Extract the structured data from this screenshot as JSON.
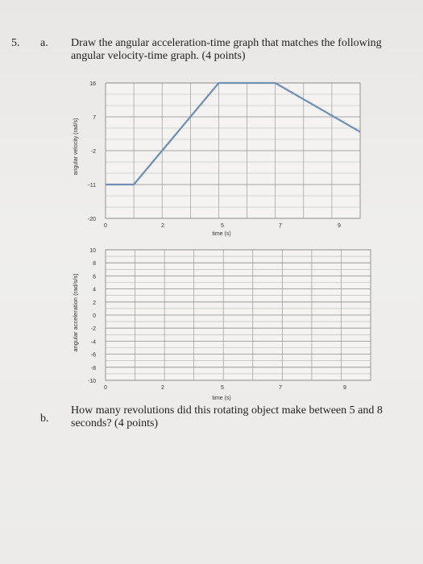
{
  "question": {
    "number": "5.",
    "part_a_label": "a.",
    "part_a_text": "Draw the angular acceleration-time graph that matches the following angular velocity-time graph. (4 points)",
    "part_b_label": "b.",
    "part_b_text": "How many revolutions did this rotating object make between 5 and 8 seconds? (4 points)"
  },
  "chart_data": [
    {
      "type": "line",
      "xlabel": "time (s)",
      "ylabel": "angular velocity (rad/s)",
      "y_tick_labels": [
        "16",
        "7",
        "-2",
        "-11",
        "-20"
      ],
      "x_tick_labels": [
        "0",
        "2",
        "5",
        "7",
        "9"
      ],
      "xlim": [
        0,
        9
      ],
      "ylim": [
        -20,
        16
      ],
      "grid": true,
      "series": [
        {
          "x": [
            0,
            1,
            4,
            6,
            9
          ],
          "y": [
            -11,
            -11,
            16,
            16,
            3
          ]
        }
      ],
      "color": "#6f8fb5"
    },
    {
      "type": "line",
      "xlabel": "time (s)",
      "ylabel": "angular acceleration (rad/s/s)",
      "y_tick_labels": [
        "10",
        "8",
        "6",
        "4",
        "2",
        "0",
        "-2",
        "-4",
        "-6",
        "-8",
        "-10"
      ],
      "x_tick_labels": [
        "0",
        "2",
        "5",
        "7",
        "9"
      ],
      "xlim": [
        0,
        9
      ],
      "ylim": [
        -10,
        10
      ],
      "grid": true,
      "series": []
    }
  ]
}
